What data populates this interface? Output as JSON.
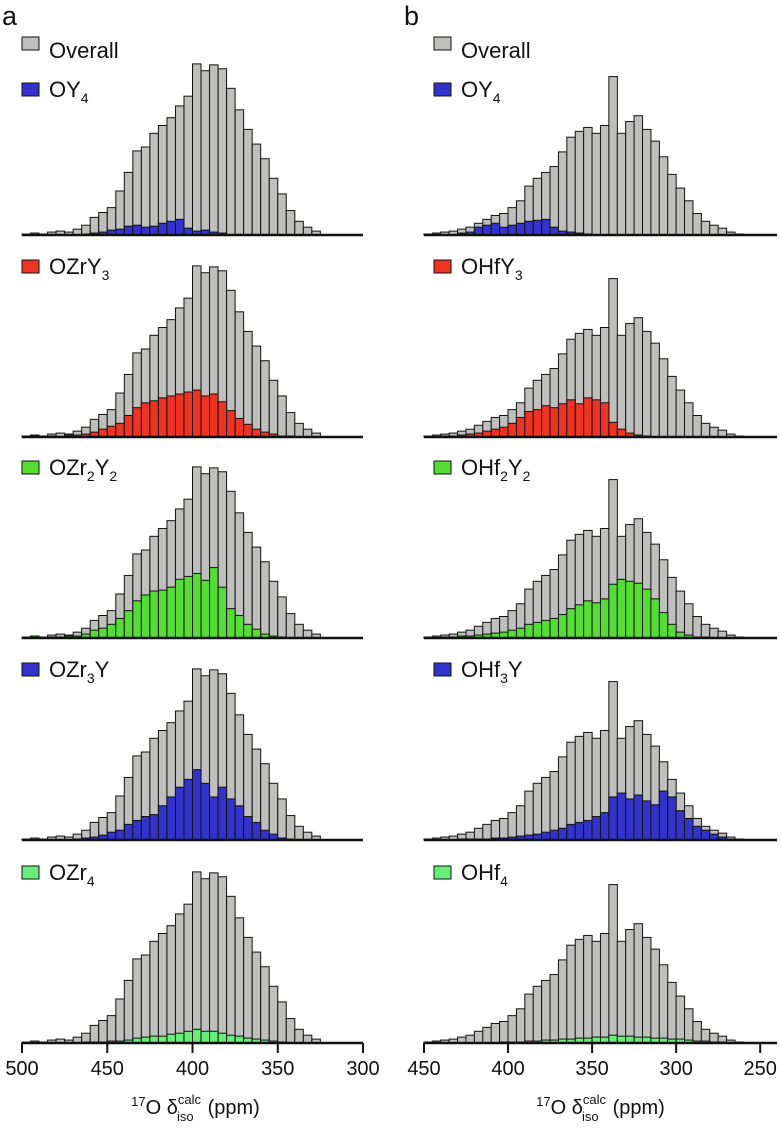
{
  "colors": {
    "overall": "#BFC0BE",
    "blue": "#3333CC",
    "red": "#EE3322",
    "green": "#55DD33",
    "light_green": "#66EE77",
    "stroke": "#111111"
  },
  "chart_data": [
    {
      "type": "bar",
      "panel_label": "a",
      "xlabel": {
        "prefix": "17",
        "main": "O δ",
        "sup": "calc",
        "sub": "iso",
        "unit": "(ppm)"
      },
      "xlim": [
        500,
        300
      ],
      "ticks": [
        "500",
        "450",
        "400",
        "350",
        "300"
      ],
      "bin_start": 497.5,
      "bin_width": 5,
      "overall": [
        1,
        2,
        1,
        3,
        4,
        3,
        6,
        10,
        18,
        23,
        28,
        45,
        64,
        86,
        90,
        104,
        112,
        120,
        132,
        142,
        175,
        168,
        174,
        170,
        150,
        128,
        108,
        93,
        78,
        58,
        42,
        25,
        14,
        8,
        4
      ],
      "rows": [
        {
          "legend": {
            "base": "OY",
            "sub": "4",
            "rest": ""
          },
          "color": "blue",
          "values": [
            0,
            0,
            0,
            0,
            0,
            0,
            0,
            1,
            2,
            3,
            5,
            6,
            9,
            10,
            8,
            9,
            12,
            14,
            16,
            7,
            4,
            5,
            3,
            2,
            0,
            0,
            0,
            0,
            0,
            0,
            0,
            0,
            0,
            0,
            0
          ]
        },
        {
          "legend": {
            "base": "OZr",
            "sub": "",
            "rest": "Y₃"
          },
          "color": "red",
          "values": [
            0,
            1,
            0,
            1,
            0,
            2,
            2,
            3,
            5,
            8,
            11,
            14,
            22,
            30,
            35,
            37,
            40,
            42,
            44,
            46,
            48,
            42,
            44,
            36,
            27,
            19,
            13,
            8,
            5,
            3,
            1,
            1,
            0,
            0,
            0
          ]
        },
        {
          "legend": {
            "base": "OZr",
            "sub": "2",
            "rest": "Y₂"
          },
          "color": "green",
          "values": [
            0,
            2,
            0,
            1,
            1,
            2,
            2,
            4,
            8,
            10,
            14,
            20,
            28,
            38,
            44,
            48,
            49,
            52,
            60,
            63,
            66,
            59,
            72,
            52,
            30,
            23,
            14,
            9,
            4,
            2,
            1,
            0,
            0,
            0,
            0
          ]
        },
        {
          "legend": {
            "base": "OZr",
            "sub": "3",
            "rest": "Y"
          },
          "color": "blue",
          "values": [
            0,
            0,
            0,
            0,
            0,
            0,
            1,
            2,
            3,
            5,
            8,
            10,
            16,
            20,
            24,
            26,
            35,
            44,
            54,
            62,
            72,
            58,
            44,
            54,
            42,
            35,
            24,
            18,
            10,
            6,
            2,
            1,
            0,
            0,
            0
          ]
        },
        {
          "legend": {
            "base": "OZr",
            "sub": "4",
            "rest": ""
          },
          "color": "light_green",
          "values": [
            0,
            0,
            0,
            0,
            0,
            0,
            0,
            1,
            1,
            1,
            2,
            2,
            3,
            5,
            6,
            7,
            7,
            9,
            10,
            12,
            14,
            12,
            12,
            10,
            8,
            7,
            5,
            4,
            3,
            2,
            1,
            0,
            0,
            0,
            0
          ]
        }
      ]
    },
    {
      "type": "bar",
      "panel_label": "b",
      "xlabel": {
        "prefix": "17",
        "main": "O δ",
        "sup": "calc",
        "sub": "iso",
        "unit": "(ppm)"
      },
      "xlim": [
        450,
        240
      ],
      "ticks": [
        "450",
        "400",
        "350",
        "300",
        "250"
      ],
      "bin_start": 447.5,
      "bin_width": 5,
      "overall": [
        1,
        2,
        3,
        4,
        6,
        8,
        12,
        16,
        20,
        22,
        28,
        35,
        50,
        58,
        64,
        70,
        85,
        100,
        106,
        110,
        104,
        112,
        162,
        104,
        116,
        122,
        108,
        96,
        80,
        62,
        48,
        35,
        22,
        14,
        10,
        7,
        3,
        1
      ],
      "rows": [
        {
          "legend": {
            "base": "OY",
            "sub": "4",
            "rest": ""
          },
          "color": "blue",
          "values": [
            0,
            0,
            0,
            0,
            2,
            3,
            8,
            10,
            12,
            8,
            10,
            12,
            14,
            15,
            16,
            8,
            4,
            3,
            2,
            1,
            0,
            0,
            0,
            0,
            0,
            0,
            0,
            0,
            0,
            0,
            0,
            0,
            0,
            0,
            0,
            0,
            0,
            0
          ]
        },
        {
          "legend": {
            "base": "OHf",
            "sub": "",
            "rest": "Y₃"
          },
          "color": "red",
          "values": [
            0,
            0,
            1,
            1,
            2,
            3,
            4,
            6,
            8,
            10,
            14,
            20,
            26,
            28,
            32,
            30,
            34,
            38,
            34,
            40,
            38,
            35,
            15,
            8,
            4,
            2,
            1,
            0,
            0,
            0,
            0,
            0,
            0,
            0,
            0,
            0,
            0,
            0
          ]
        },
        {
          "legend": {
            "base": "OHf",
            "sub": "2",
            "rest": "Y₂"
          },
          "color": "green",
          "values": [
            0,
            0,
            1,
            1,
            2,
            2,
            3,
            4,
            5,
            6,
            8,
            10,
            14,
            16,
            18,
            20,
            24,
            30,
            34,
            38,
            36,
            40,
            55,
            60,
            58,
            56,
            50,
            40,
            26,
            14,
            6,
            3,
            1,
            1,
            0,
            0,
            0,
            0
          ]
        },
        {
          "legend": {
            "base": "OHf",
            "sub": "3",
            "rest": "Y"
          },
          "color": "blue",
          "values": [
            0,
            0,
            0,
            0,
            1,
            1,
            1,
            1,
            2,
            2,
            3,
            4,
            5,
            6,
            8,
            10,
            12,
            16,
            18,
            20,
            24,
            28,
            44,
            48,
            42,
            46,
            40,
            36,
            50,
            44,
            30,
            22,
            14,
            10,
            6,
            3,
            1,
            0
          ]
        },
        {
          "legend": {
            "base": "OHf",
            "sub": "4",
            "rest": ""
          },
          "color": "light_green",
          "values": [
            0,
            0,
            0,
            0,
            0,
            0,
            0,
            0,
            0,
            1,
            1,
            1,
            2,
            2,
            3,
            3,
            4,
            4,
            5,
            5,
            6,
            6,
            8,
            7,
            7,
            6,
            6,
            5,
            5,
            4,
            4,
            3,
            2,
            2,
            1,
            1,
            0,
            0
          ]
        }
      ]
    }
  ]
}
